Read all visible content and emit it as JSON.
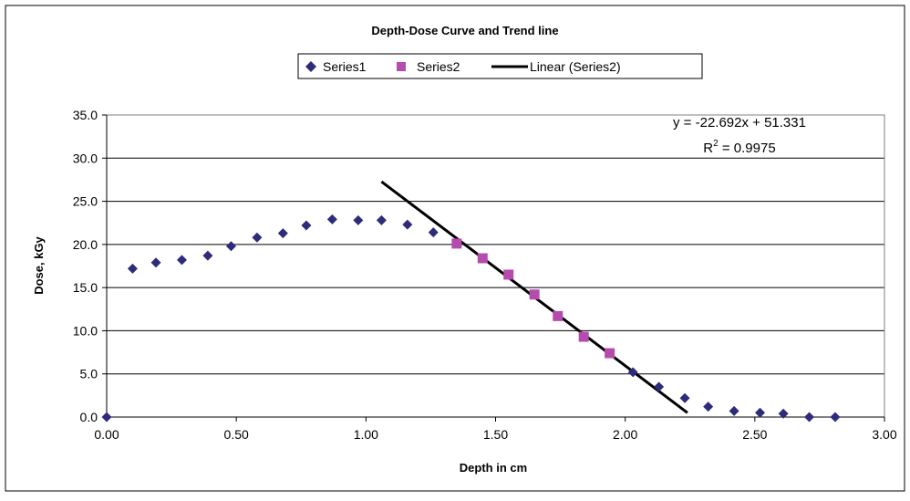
{
  "chart_data": {
    "type": "scatter",
    "title": "Depth-Dose Curve and Trend line",
    "xlabel": "Depth in cm",
    "ylabel": "Dose, kGy",
    "xlim": [
      0,
      3
    ],
    "ylim": [
      0,
      35
    ],
    "x_ticks": [
      "0.00",
      "0.50",
      "1.00",
      "1.50",
      "2.00",
      "2.50",
      "3.00"
    ],
    "y_ticks": [
      "0.0",
      "5.0",
      "10.0",
      "15.0",
      "20.0",
      "25.0",
      "30.0",
      "35.0"
    ],
    "grid": "horizontal",
    "legend_position": "top",
    "series": [
      {
        "name": "Series1",
        "marker": "diamond",
        "color": "#2E2B7A",
        "points": [
          [
            0.0,
            0.0
          ],
          [
            0.1,
            17.2
          ],
          [
            0.19,
            17.9
          ],
          [
            0.29,
            18.2
          ],
          [
            0.39,
            18.7
          ],
          [
            0.48,
            19.8
          ],
          [
            0.58,
            20.8
          ],
          [
            0.68,
            21.3
          ],
          [
            0.77,
            22.2
          ],
          [
            0.87,
            22.9
          ],
          [
            0.97,
            22.8
          ],
          [
            1.06,
            22.8
          ],
          [
            1.16,
            22.3
          ],
          [
            1.26,
            21.4
          ],
          [
            2.03,
            5.2
          ],
          [
            2.13,
            3.5
          ],
          [
            2.23,
            2.2
          ],
          [
            2.32,
            1.2
          ],
          [
            2.42,
            0.7
          ],
          [
            2.52,
            0.5
          ],
          [
            2.61,
            0.4
          ],
          [
            2.71,
            0.0
          ],
          [
            2.81,
            0.0
          ]
        ]
      },
      {
        "name": "Series2",
        "marker": "square",
        "color": "#B64BAE",
        "points": [
          [
            1.35,
            20.1
          ],
          [
            1.45,
            18.4
          ],
          [
            1.55,
            16.5
          ],
          [
            1.65,
            14.2
          ],
          [
            1.74,
            11.7
          ],
          [
            1.84,
            9.3
          ],
          [
            1.94,
            7.4
          ]
        ]
      }
    ],
    "trendline": {
      "name": "Linear (Series2)",
      "color": "#000000",
      "slope": -22.692,
      "intercept": 51.331,
      "x_range": [
        1.06,
        2.24
      ]
    },
    "equation_text": "y = -22.692x + 51.331",
    "r2_label": "R",
    "r2_exponent": "2",
    "r2_value": " = 0.9975"
  }
}
